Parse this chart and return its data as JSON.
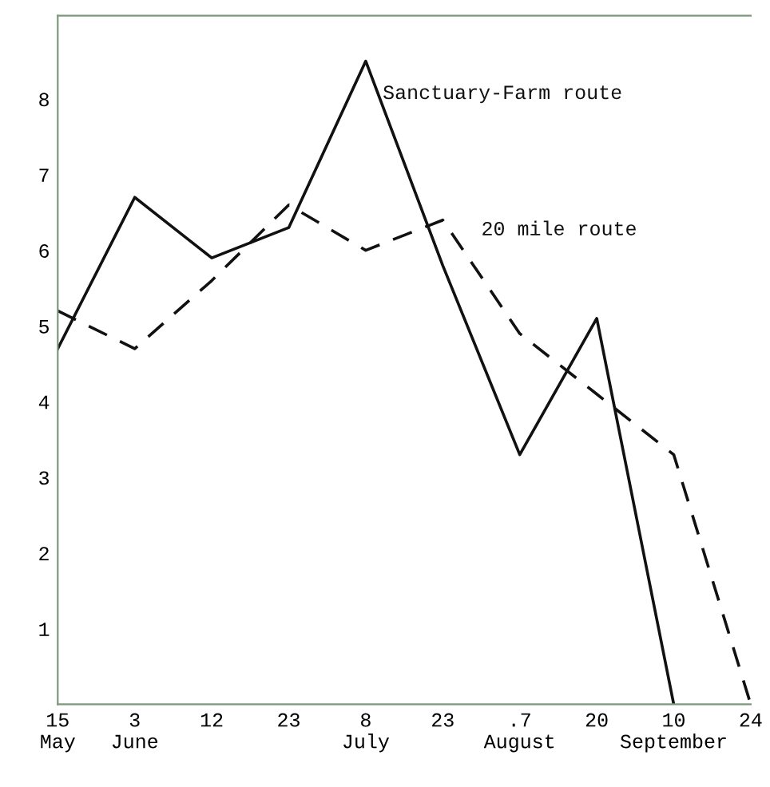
{
  "chart_data": {
    "type": "line",
    "categories": [
      "15\nMay",
      "3\nJune",
      "12",
      "23",
      "8\nJuly",
      "23",
      ".7\nAugust",
      "20",
      "10\nSeptember",
      "24"
    ],
    "series": [
      {
        "name": "Sanctuary-Farm route",
        "color": "#111111",
        "line_style": "solid",
        "values": [
          4.7,
          6.7,
          5.9,
          6.3,
          8.5,
          5.8,
          3.3,
          5.1,
          0,
          null
        ]
      },
      {
        "name": "20 mile route",
        "color": "#111111",
        "line_style": "dashed",
        "values": [
          5.2,
          4.7,
          5.6,
          6.6,
          6.0,
          6.4,
          4.9,
          4.1,
          3.3,
          0
        ]
      }
    ],
    "ylim": [
      0,
      9.1
    ],
    "yticks": [
      1,
      2,
      3,
      4,
      5,
      6,
      7,
      8
    ],
    "grid": false,
    "legend": false,
    "marker": "none"
  }
}
